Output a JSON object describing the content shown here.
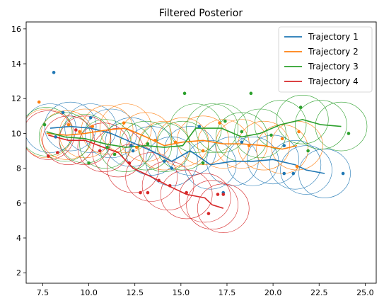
{
  "chart_data": {
    "type": "line",
    "title": "Filtered Posterior",
    "xlabel": "",
    "ylabel": "",
    "xlim": [
      6.6,
      25.6
    ],
    "ylim": [
      1.4,
      16.4
    ],
    "xticks": [
      7.5,
      10.0,
      12.5,
      15.0,
      17.5,
      20.0,
      22.5,
      25.0
    ],
    "xtick_labels": [
      "7.5",
      "10.0",
      "12.5",
      "15.0",
      "17.5",
      "20.0",
      "22.5",
      "25.0"
    ],
    "yticks": [
      2,
      4,
      6,
      8,
      10,
      12,
      14,
      16
    ],
    "ytick_labels": [
      "2",
      "4",
      "6",
      "8",
      "10",
      "12",
      "14",
      "16"
    ],
    "grid": false,
    "legend_position": "top-right",
    "ellipse_radius": 1.4,
    "series": [
      {
        "name": "Trajectory 1",
        "color": "#1f77b4",
        "line": [
          [
            7.9,
            10.3
          ],
          [
            9.0,
            10.4
          ],
          [
            10.1,
            10.3
          ],
          [
            11.2,
            10.0
          ],
          [
            12.3,
            9.5
          ],
          [
            13.4,
            9.0
          ],
          [
            14.5,
            8.4
          ],
          [
            15.5,
            9.0
          ],
          [
            16.6,
            8.2
          ],
          [
            17.8,
            8.4
          ],
          [
            18.9,
            8.4
          ],
          [
            20.0,
            8.5
          ],
          [
            21.2,
            8.2
          ],
          [
            21.8,
            7.9
          ],
          [
            22.8,
            7.7
          ]
        ],
        "points": [
          [
            8.1,
            13.5
          ],
          [
            8.6,
            11.2
          ],
          [
            10.1,
            10.9
          ],
          [
            8.2,
            9.8
          ],
          [
            12.3,
            9.3
          ],
          [
            14.1,
            8.4
          ],
          [
            16.0,
            10.4
          ],
          [
            17.3,
            6.6
          ],
          [
            18.3,
            9.5
          ],
          [
            20.6,
            9.3
          ],
          [
            20.6,
            7.7
          ],
          [
            21.1,
            7.7
          ],
          [
            23.8,
            7.7
          ],
          [
            12.4,
            9.0
          ],
          [
            14.5,
            8.0
          ]
        ]
      },
      {
        "name": "Trajectory 2",
        "color": "#ff7f0e",
        "line": [
          [
            7.7,
            10.0
          ],
          [
            8.8,
            9.9
          ],
          [
            9.8,
            10.0
          ],
          [
            11.0,
            10.2
          ],
          [
            12.0,
            10.3
          ],
          [
            13.1,
            9.8
          ],
          [
            14.1,
            9.3
          ],
          [
            15.1,
            9.5
          ],
          [
            16.2,
            9.6
          ],
          [
            17.3,
            9.4
          ],
          [
            18.3,
            9.4
          ],
          [
            19.5,
            9.3
          ],
          [
            20.5,
            9.1
          ],
          [
            21.3,
            9.3
          ]
        ],
        "points": [
          [
            7.3,
            11.8
          ],
          [
            8.9,
            10.5
          ],
          [
            10.2,
            10.4
          ],
          [
            11.9,
            10.6
          ],
          [
            12.6,
            9.2
          ],
          [
            13.6,
            9.6
          ],
          [
            14.7,
            9.5
          ],
          [
            16.2,
            9.0
          ],
          [
            17.1,
            10.6
          ],
          [
            18.7,
            9.3
          ],
          [
            20.5,
            9.7
          ],
          [
            21.4,
            10.1
          ],
          [
            21.3,
            8.1
          ],
          [
            9.5,
            10.1
          ]
        ]
      },
      {
        "name": "Trajectory 3",
        "color": "#2ca02c",
        "line": [
          [
            7.7,
            10.1
          ],
          [
            8.7,
            9.8
          ],
          [
            9.8,
            9.7
          ],
          [
            10.9,
            9.4
          ],
          [
            12.0,
            9.2
          ],
          [
            13.1,
            9.3
          ],
          [
            14.1,
            9.2
          ],
          [
            15.1,
            9.3
          ],
          [
            15.8,
            10.3
          ],
          [
            16.7,
            10.3
          ],
          [
            17.2,
            10.3
          ],
          [
            18.3,
            9.8
          ],
          [
            19.3,
            10.0
          ],
          [
            20.4,
            10.5
          ],
          [
            21.6,
            10.8
          ],
          [
            22.6,
            10.5
          ],
          [
            23.7,
            10.4
          ]
        ],
        "points": [
          [
            7.6,
            10.5
          ],
          [
            10.0,
            8.3
          ],
          [
            11.0,
            9.2
          ],
          [
            13.2,
            9.4
          ],
          [
            15.2,
            12.3
          ],
          [
            16.2,
            8.3
          ],
          [
            17.4,
            10.7
          ],
          [
            18.3,
            10.1
          ],
          [
            18.8,
            12.3
          ],
          [
            19.9,
            9.9
          ],
          [
            21.5,
            11.5
          ],
          [
            21.9,
            9.0
          ],
          [
            24.1,
            10.0
          ],
          [
            11.4,
            8.8
          ]
        ]
      },
      {
        "name": "Trajectory 4",
        "color": "#d62728",
        "line": [
          [
            7.8,
            9.9
          ],
          [
            8.9,
            9.6
          ],
          [
            9.8,
            9.6
          ],
          [
            10.8,
            9.2
          ],
          [
            11.6,
            8.9
          ],
          [
            12.4,
            8.0
          ],
          [
            13.4,
            7.5
          ],
          [
            14.3,
            7.0
          ],
          [
            15.3,
            6.5
          ],
          [
            16.3,
            6.3
          ],
          [
            16.7,
            5.9
          ],
          [
            17.3,
            5.7
          ]
        ],
        "points": [
          [
            7.8,
            8.7
          ],
          [
            8.3,
            8.9
          ],
          [
            9.3,
            10.2
          ],
          [
            10.6,
            9.0
          ],
          [
            12.2,
            8.3
          ],
          [
            12.8,
            6.6
          ],
          [
            13.2,
            6.6
          ],
          [
            13.8,
            7.3
          ],
          [
            14.4,
            7.0
          ],
          [
            15.3,
            6.6
          ],
          [
            16.5,
            5.4
          ],
          [
            17.0,
            6.5
          ],
          [
            17.3,
            6.5
          ]
        ]
      }
    ]
  }
}
